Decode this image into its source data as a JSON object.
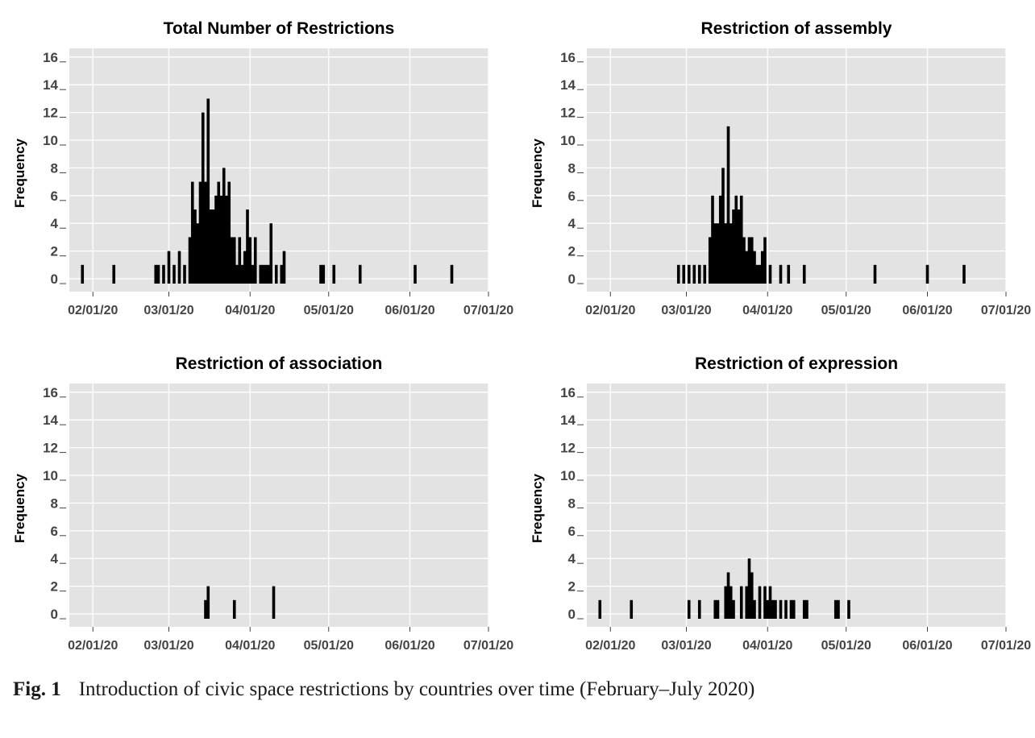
{
  "x_ticks": [
    "02/01/20",
    "03/01/20",
    "04/01/20",
    "05/01/20",
    "06/01/20",
    "07/01/20"
  ],
  "caption": {
    "label": "Fig. 1",
    "text": "Introduction of civic space restrictions by countries over time (February–July 2020)"
  },
  "chart_data": [
    {
      "type": "bar",
      "title": "Total Number of Restrictions",
      "xlabel": "",
      "ylabel": "Frequency",
      "ylim": [
        0,
        16
      ],
      "yticks": [
        0,
        2,
        4,
        6,
        8,
        10,
        12,
        14,
        16
      ],
      "xlim": [
        "2020-01-23",
        "2020-07-01"
      ],
      "x": [
        "2020-01-28",
        "2020-02-09",
        "2020-02-25",
        "2020-02-26",
        "2020-02-28",
        "2020-03-01",
        "2020-03-03",
        "2020-03-05",
        "2020-03-07",
        "2020-03-09",
        "2020-03-10",
        "2020-03-11",
        "2020-03-12",
        "2020-03-13",
        "2020-03-14",
        "2020-03-15",
        "2020-03-16",
        "2020-03-17",
        "2020-03-18",
        "2020-03-19",
        "2020-03-20",
        "2020-03-21",
        "2020-03-22",
        "2020-03-23",
        "2020-03-24",
        "2020-03-25",
        "2020-03-26",
        "2020-03-27",
        "2020-03-28",
        "2020-03-29",
        "2020-03-30",
        "2020-03-31",
        "2020-04-01",
        "2020-04-02",
        "2020-04-03",
        "2020-04-05",
        "2020-04-06",
        "2020-04-07",
        "2020-04-08",
        "2020-04-09",
        "2020-04-11",
        "2020-04-13",
        "2020-04-14",
        "2020-04-28",
        "2020-04-29",
        "2020-05-03",
        "2020-05-13",
        "2020-06-03",
        "2020-06-17"
      ],
      "values": [
        1,
        1,
        1,
        1,
        1,
        2,
        1,
        2,
        1,
        3,
        7,
        5,
        4,
        7,
        12,
        7,
        13,
        5,
        5,
        6,
        7,
        6,
        8,
        6,
        7,
        3,
        3,
        1,
        3,
        1,
        2,
        5,
        3,
        1,
        3,
        1,
        1,
        1,
        1,
        4,
        1,
        1,
        2,
        1,
        1,
        1,
        1,
        1,
        1
      ]
    },
    {
      "type": "bar",
      "title": "Restriction of assembly",
      "xlabel": "",
      "ylabel": "Frequency",
      "ylim": [
        0,
        16
      ],
      "yticks": [
        0,
        2,
        4,
        6,
        8,
        10,
        12,
        14,
        16
      ],
      "xlim": [
        "2020-01-23",
        "2020-07-01"
      ],
      "x": [
        "2020-02-27",
        "2020-02-29",
        "2020-03-02",
        "2020-03-04",
        "2020-03-06",
        "2020-03-08",
        "2020-03-10",
        "2020-03-11",
        "2020-03-12",
        "2020-03-13",
        "2020-03-14",
        "2020-03-15",
        "2020-03-16",
        "2020-03-17",
        "2020-03-18",
        "2020-03-19",
        "2020-03-20",
        "2020-03-21",
        "2020-03-22",
        "2020-03-23",
        "2020-03-24",
        "2020-03-25",
        "2020-03-26",
        "2020-03-27",
        "2020-03-28",
        "2020-03-29",
        "2020-03-30",
        "2020-03-31",
        "2020-04-02",
        "2020-04-06",
        "2020-04-09",
        "2020-04-15",
        "2020-05-12",
        "2020-06-01",
        "2020-06-15"
      ],
      "values": [
        1,
        1,
        1,
        1,
        1,
        1,
        3,
        6,
        4,
        4,
        6,
        8,
        4,
        11,
        4,
        5,
        6,
        5,
        6,
        3,
        2,
        3,
        3,
        2,
        1,
        1,
        2,
        3,
        1,
        1,
        1,
        1,
        1,
        1,
        1
      ]
    },
    {
      "type": "bar",
      "title": "Restriction of association",
      "xlabel": "",
      "ylabel": "Frequency",
      "ylim": [
        0,
        16
      ],
      "yticks": [
        0,
        2,
        4,
        6,
        8,
        10,
        12,
        14,
        16
      ],
      "xlim": [
        "2020-01-23",
        "2020-07-01"
      ],
      "x": [
        "2020-03-15",
        "2020-03-16",
        "2020-03-26",
        "2020-04-10"
      ],
      "values": [
        1,
        2,
        1,
        2
      ]
    },
    {
      "type": "bar",
      "title": "Restriction of expression",
      "xlabel": "",
      "ylabel": "Frequency",
      "ylim": [
        0,
        16
      ],
      "yticks": [
        0,
        2,
        4,
        6,
        8,
        10,
        12,
        14,
        16
      ],
      "xlim": [
        "2020-01-23",
        "2020-07-01"
      ],
      "x": [
        "2020-01-28",
        "2020-02-09",
        "2020-03-02",
        "2020-03-06",
        "2020-03-12",
        "2020-03-13",
        "2020-03-16",
        "2020-03-17",
        "2020-03-18",
        "2020-03-19",
        "2020-03-22",
        "2020-03-24",
        "2020-03-25",
        "2020-03-26",
        "2020-03-27",
        "2020-03-29",
        "2020-03-31",
        "2020-04-01",
        "2020-04-02",
        "2020-04-03",
        "2020-04-04",
        "2020-04-06",
        "2020-04-08",
        "2020-04-10",
        "2020-04-11",
        "2020-04-15",
        "2020-04-16",
        "2020-04-27",
        "2020-04-28",
        "2020-05-02"
      ],
      "values": [
        1,
        1,
        1,
        1,
        1,
        1,
        2,
        3,
        2,
        1,
        2,
        2,
        4,
        3,
        1,
        2,
        2,
        1,
        2,
        1,
        1,
        1,
        1,
        1,
        1,
        1,
        1,
        1,
        1,
        1
      ]
    }
  ]
}
